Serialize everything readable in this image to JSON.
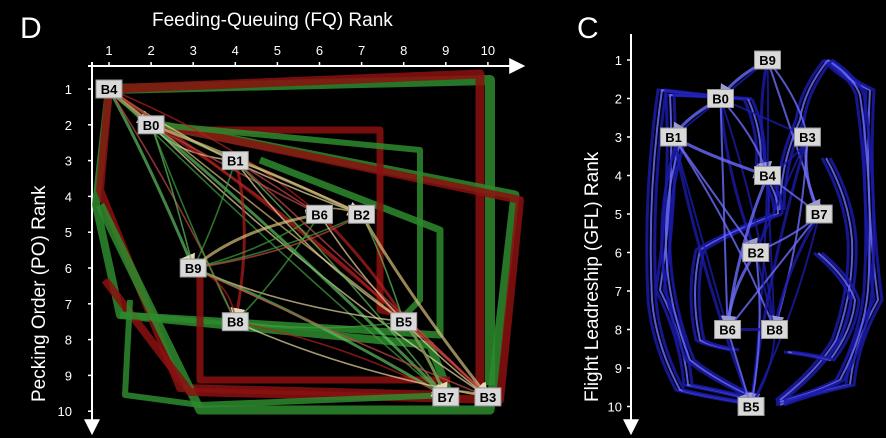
{
  "panel_d": {
    "letter": "D",
    "x_axis_title": "Feeding-Queuing (FQ) Rank",
    "y_axis_title": "Pecking Order (PO) Rank",
    "x_ticks": [
      "1",
      "2",
      "3",
      "4",
      "5",
      "6",
      "7",
      "8",
      "9",
      "10"
    ],
    "y_ticks": [
      "1",
      "2",
      "3",
      "4",
      "5",
      "6",
      "7",
      "8",
      "9",
      "10"
    ],
    "colors": {
      "green": "#2e8b2e",
      "red": "#8b1010",
      "highlight": "#f0e0a0",
      "node": "#d9d9d9"
    },
    "nodes": [
      {
        "label": "B4",
        "fq": 1,
        "po": 1
      },
      {
        "label": "B0",
        "fq": 2,
        "po": 2
      },
      {
        "label": "B1",
        "fq": 4,
        "po": 3
      },
      {
        "label": "B6",
        "fq": 6,
        "po": 4.5
      },
      {
        "label": "B2",
        "fq": 7,
        "po": 4.5
      },
      {
        "label": "B9",
        "fq": 3,
        "po": 6
      },
      {
        "label": "B8",
        "fq": 4,
        "po": 7.5
      },
      {
        "label": "B5",
        "fq": 8,
        "po": 7.5
      },
      {
        "label": "B7",
        "fq": 9,
        "po": 9.6
      },
      {
        "label": "B3",
        "fq": 10,
        "po": 9.6
      }
    ]
  },
  "panel_c": {
    "letter": "C",
    "y_axis_title": "Flight Leadreship (GFL) Rank",
    "y_ticks": [
      "1",
      "2",
      "3",
      "4",
      "5",
      "6",
      "7",
      "8",
      "9",
      "10"
    ],
    "colors": {
      "edge": "#1a1aa8",
      "edge_light": "#6b6bff",
      "node": "#d9d9d9"
    },
    "nodes": [
      {
        "label": "B9",
        "col": 0.5,
        "gfl": 1
      },
      {
        "label": "B0",
        "col": 0.3,
        "gfl": 2
      },
      {
        "label": "B1",
        "col": 0.1,
        "gfl": 3
      },
      {
        "label": "B3",
        "col": 0.67,
        "gfl": 3
      },
      {
        "label": "B4",
        "col": 0.5,
        "gfl": 4
      },
      {
        "label": "B7",
        "col": 0.72,
        "gfl": 5
      },
      {
        "label": "B2",
        "col": 0.45,
        "gfl": 6
      },
      {
        "label": "B6",
        "col": 0.33,
        "gfl": 8
      },
      {
        "label": "B8",
        "col": 0.53,
        "gfl": 8
      },
      {
        "label": "B5",
        "col": 0.43,
        "gfl": 10
      }
    ]
  }
}
